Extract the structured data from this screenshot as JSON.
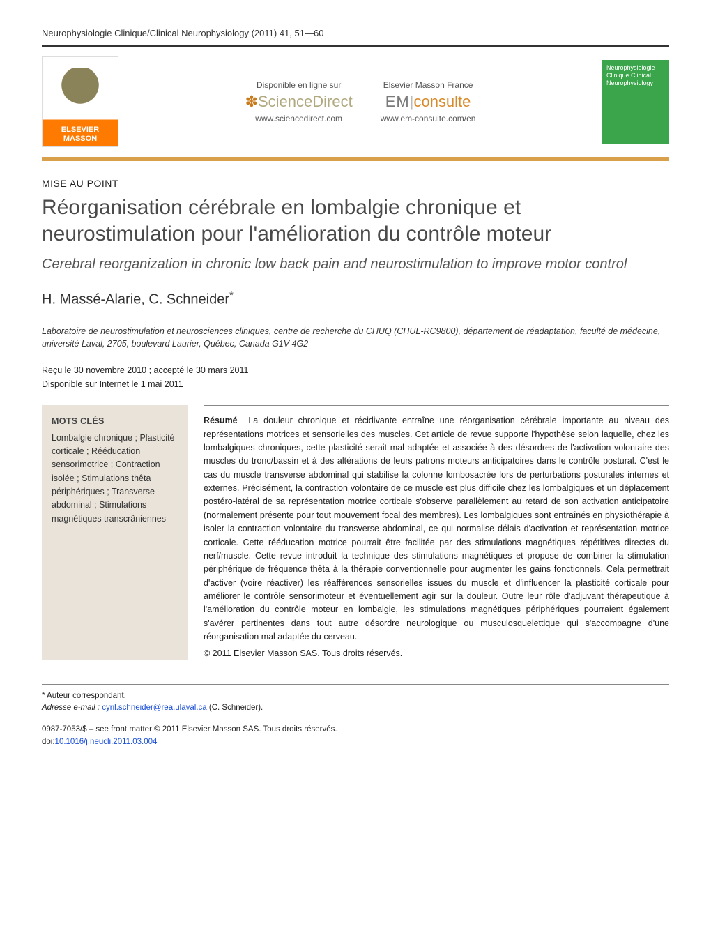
{
  "citation": "Neurophysiologie Clinique/Clinical Neurophysiology (2011) 41, 51—60",
  "header": {
    "elsevier_brand_line1": "ELSEVIER",
    "elsevier_brand_line2": "MASSON",
    "sd_available": "Disponible en ligne sur",
    "sd_logo": "ScienceDirect",
    "sd_url": "www.sciencedirect.com",
    "em_title": "Elsevier Masson France",
    "em_logo_left": "EM",
    "em_logo_right": "consulte",
    "em_url": "www.em-consulte.com/en",
    "journal_cover_text": "Neurophysiologie Clinique Clinical Neurophysiology"
  },
  "article_type": "MISE AU POINT",
  "title_fr": "Réorganisation cérébrale en lombalgie chronique et neurostimulation pour l'amélioration du contrôle moteur",
  "title_en": "Cerebral reorganization in chronic low back pain and neurostimulation to improve motor control",
  "authors": "H. Massé-Alarie, C. Schneider",
  "corr_mark": "*",
  "affiliation": "Laboratoire de neurostimulation et neurosciences cliniques, centre de recherche du CHUQ (CHUL-RC9800), département de réadaptation, faculté de médecine, université Laval, 2705, boulevard Laurier, Québec, Canada G1V 4G2",
  "dates_line1": "Reçu le 30 novembre 2010 ; accepté le 30 mars 2011",
  "dates_line2": "Disponible sur Internet le 1 mai 2011",
  "keywords": {
    "head": "MOTS CLÉS",
    "list": "Lombalgie chronique ; Plasticité corticale ; Rééducation sensorimotrice ; Contraction isolée ; Stimulations thêta périphériques ; Transverse abdominal ; Stimulations magnétiques transcrâniennes"
  },
  "abstract": {
    "head": "Résumé",
    "text": "La douleur chronique et récidivante entraîne une réorganisation cérébrale importante au niveau des représentations motrices et sensorielles des muscles. Cet article de revue supporte l'hypothèse selon laquelle, chez les lombalgiques chroniques, cette plasticité serait mal adaptée et associée à des désordres de l'activation volontaire des muscles du tronc/bassin et à des altérations de leurs patrons moteurs anticipatoires dans le contrôle postural. C'est le cas du muscle transverse abdominal qui stabilise la colonne lombosacrée lors de perturbations posturales internes et externes. Précisément, la contraction volontaire de ce muscle est plus difficile chez les lombalgiques et un déplacement postéro-latéral de sa représentation motrice corticale s'observe parallèlement au retard de son activation anticipatoire (normalement présente pour tout mouvement focal des membres). Les lombalgiques sont entraînés en physiothérapie à isoler la contraction volontaire du transverse abdominal, ce qui normalise délais d'activation et représentation motrice corticale. Cette rééducation motrice pourrait être facilitée par des stimulations magnétiques répétitives directes du nerf/muscle. Cette revue introduit la technique des stimulations magnétiques et propose de combiner la stimulation périphérique de fréquence thêta à la thérapie conventionnelle pour augmenter les gains fonctionnels. Cela permettrait d'activer (voire réactiver) les réafférences sensorielles issues du muscle et d'influencer la plasticité corticale pour améliorer le contrôle sensorimoteur et éventuellement agir sur la douleur. Outre leur rôle d'adjuvant thérapeutique à l'amélioration du contrôle moteur en lombalgie, les stimulations magnétiques périphériques pourraient également s'avérer pertinentes dans tout autre désordre neurologique ou musculosquelettique qui s'accompagne d'une réorganisation mal adaptée du cerveau.",
    "copyright": "© 2011 Elsevier Masson SAS. Tous droits réservés."
  },
  "footnotes": {
    "corr": "* Auteur correspondant.",
    "email_label": "Adresse e-mail :",
    "email": "cyril.schneider@rea.ulaval.ca",
    "email_attribution": "(C. Schneider)."
  },
  "pubinfo": {
    "line1": "0987-7053/$ – see front matter © 2011 Elsevier Masson SAS. Tous droits réservés.",
    "doi_label": "doi:",
    "doi": "10.1016/j.neucli.2011.03.004"
  },
  "colors": {
    "accent_bar": "#d8a04a",
    "keywords_bg": "#e9e3da",
    "link": "#1a4fd8",
    "journal_cover": "#3aa54a",
    "elsevier_orange": "#ff7a00"
  }
}
